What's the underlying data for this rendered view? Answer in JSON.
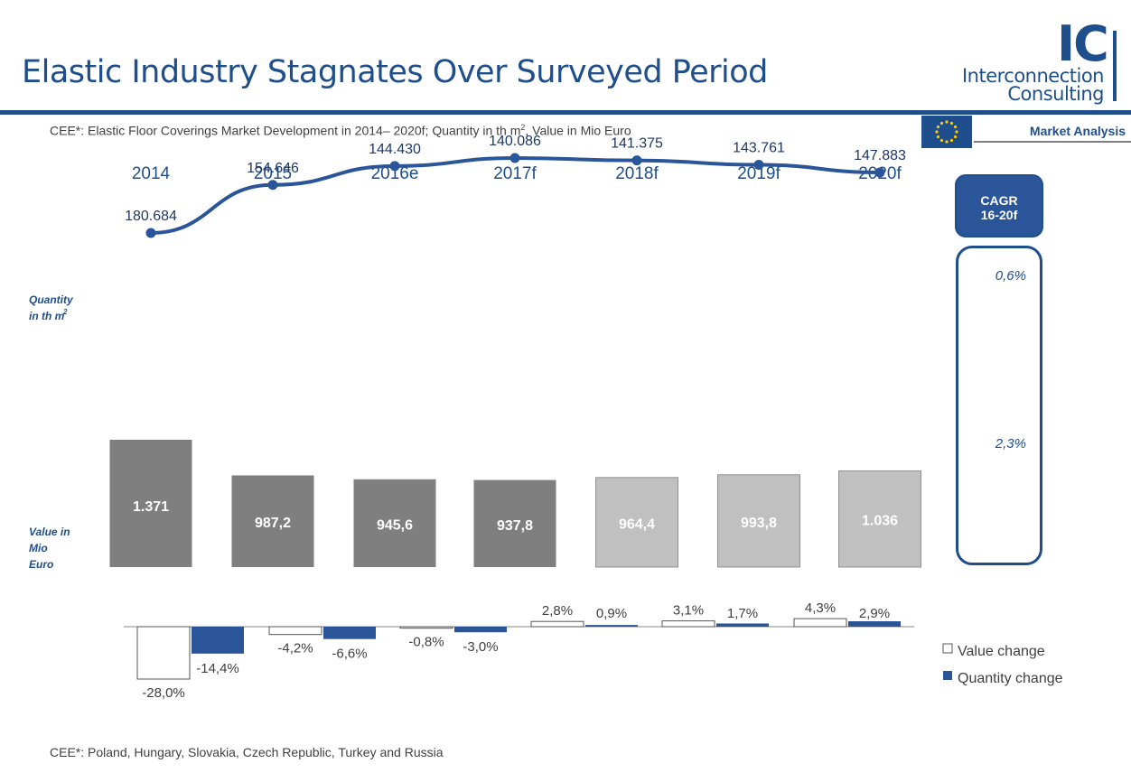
{
  "header": {
    "title": "Elastic Industry Stagnates Over Surveyed Period",
    "subtitle_main": "CEE*: Elastic Floor Coverings Market Development  in 2014– 2020f; Quantity in th m",
    "subtitle_sup": "2",
    "subtitle_end": ", Value in Mio Euro",
    "section": "Market Analysis"
  },
  "logo": {
    "mark": "IC",
    "line1": "Interconnection",
    "line2": "Consulting",
    "flag_icon": "eu-flag-icon"
  },
  "chart_data": {
    "type": "line+bar",
    "categories": [
      "2014",
      "2015",
      "2016e",
      "2017f",
      "2018f",
      "2019f",
      "2020f"
    ],
    "quantity": {
      "label_line1": "Quantity",
      "label_line2": "in th m",
      "label_sup": "2",
      "values": [
        180684,
        154646,
        144430,
        140086,
        141375,
        143761,
        147883
      ],
      "display": [
        "180.684",
        "154.646",
        "144.430",
        "140.086",
        "141.375",
        "143.761",
        "147.883"
      ]
    },
    "value": {
      "label_lines": [
        "Value in",
        "Mio",
        "Euro"
      ],
      "values": [
        1371,
        987.2,
        945.6,
        937.8,
        964.4,
        993.8,
        1036
      ],
      "display": [
        "1.371",
        "987,2",
        "945,6",
        "937,8",
        "964,4",
        "993,8",
        "1.036"
      ],
      "forecast_from_index": 4
    },
    "changes": {
      "categories": [
        "2015",
        "2016e",
        "2017f",
        "2018f",
        "2019f",
        "2020f"
      ],
      "value_change": [
        -28.0,
        -4.2,
        -0.8,
        2.8,
        3.1,
        4.3
      ],
      "value_display": [
        "-28,0%",
        "-4,2%",
        "-0,8%",
        "2,8%",
        "3,1%",
        "4,3%"
      ],
      "quantity_change": [
        -14.4,
        -6.6,
        -3.0,
        0.9,
        1.7,
        2.9
      ],
      "quantity_display": [
        "-14,4%",
        "-6,6%",
        "-3,0%",
        "0,9%",
        "1,7%",
        "2,9%"
      ]
    },
    "legend": {
      "value_change": "Value change",
      "quantity_change": "Quantity change"
    },
    "cagr": {
      "header": [
        "CAGR",
        "16-20f"
      ],
      "quantity": "0,6%",
      "value": "2,3%"
    },
    "colors": {
      "line": "#2a5699",
      "bar_actual": "#7f7f7f",
      "bar_forecast": "#c0c0c0",
      "quantity_change": "#2a5699",
      "value_change": "#ffffff"
    }
  },
  "footer": {
    "note": "CEE*: Poland, Hungary, Slovakia, Czech Republic, Turkey and Russia"
  }
}
